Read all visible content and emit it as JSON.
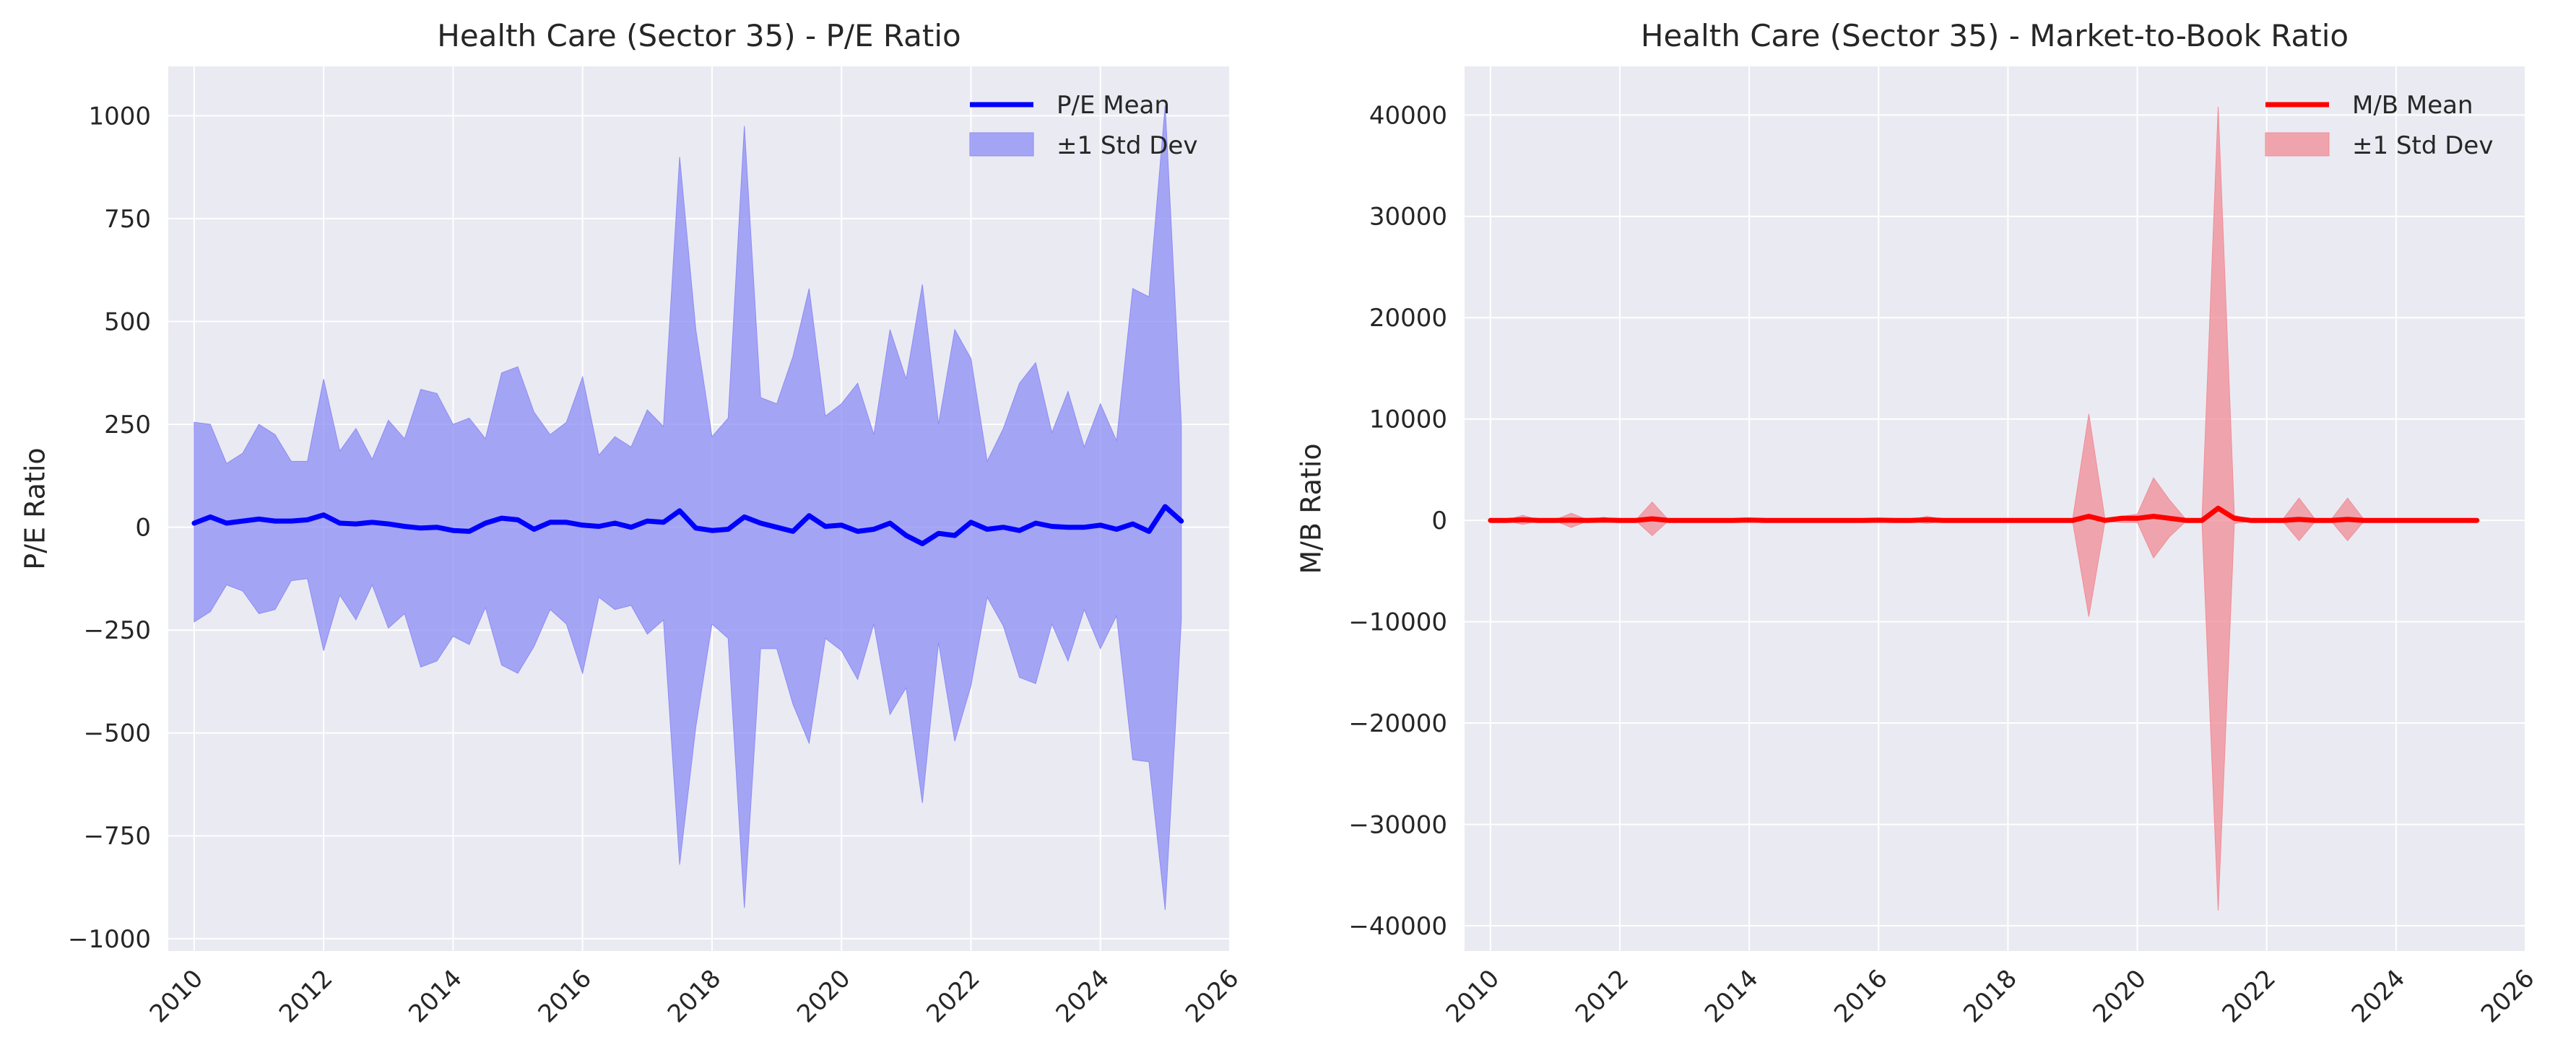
{
  "colors": {
    "panel_bg": "#EAEAF2",
    "grid": "#FFFFFF",
    "pe_line": "#0000FF",
    "pe_band": "#8C8CF5",
    "mb_line": "#FF0000",
    "mb_band": "#F08C96"
  },
  "chart_data": [
    {
      "type": "line",
      "title": "Health Care (Sector 35) - P/E Ratio",
      "xlabel": "",
      "ylabel": "P/E Ratio",
      "xlim": [
        2009.6,
        2026.0
      ],
      "ylim": [
        -1030,
        1120
      ],
      "xticks": [
        2010,
        2012,
        2014,
        2016,
        2018,
        2020,
        2022,
        2024,
        2026
      ],
      "yticks": [
        -1000,
        -750,
        -500,
        -250,
        0,
        250,
        500,
        750,
        1000
      ],
      "ytick_labels": [
        "−1000",
        "−750",
        "−500",
        "−250",
        "0",
        "250",
        "500",
        "750",
        "1000"
      ],
      "grid": true,
      "legend": {
        "placement": "top-right",
        "entries": [
          "P/E Mean",
          "±1 Std Dev"
        ]
      },
      "x": [
        2010.0,
        2010.25,
        2010.5,
        2010.75,
        2011.0,
        2011.25,
        2011.5,
        2011.75,
        2012.0,
        2012.25,
        2012.5,
        2012.75,
        2013.0,
        2013.25,
        2013.5,
        2013.75,
        2014.0,
        2014.25,
        2014.5,
        2014.75,
        2015.0,
        2015.25,
        2015.5,
        2015.75,
        2016.0,
        2016.25,
        2016.5,
        2016.75,
        2017.0,
        2017.25,
        2017.5,
        2017.75,
        2018.0,
        2018.25,
        2018.5,
        2018.75,
        2019.0,
        2019.25,
        2019.5,
        2019.75,
        2020.0,
        2020.25,
        2020.5,
        2020.75,
        2021.0,
        2021.25,
        2021.5,
        2021.75,
        2022.0,
        2022.25,
        2022.5,
        2022.75,
        2023.0,
        2023.25,
        2023.5,
        2023.75,
        2024.0,
        2024.25,
        2024.5,
        2024.75,
        2025.0,
        2025.25
      ],
      "series": [
        {
          "name": "P/E Mean",
          "kind": "line",
          "values": [
            10,
            25,
            10,
            15,
            20,
            15,
            15,
            18,
            30,
            10,
            8,
            12,
            8,
            2,
            -2,
            0,
            -8,
            -10,
            10,
            22,
            18,
            -5,
            12,
            12,
            5,
            2,
            10,
            0,
            15,
            12,
            40,
            -2,
            -8,
            -5,
            25,
            10,
            0,
            -10,
            28,
            2,
            5,
            -10,
            -5,
            10,
            -20,
            -40,
            -15,
            -20,
            12,
            -5,
            0,
            -8,
            10,
            2,
            0,
            0,
            5,
            -5,
            8,
            -10,
            50,
            15
          ]
        },
        {
          "name": "±1 Std Dev",
          "kind": "band",
          "upper": [
            255,
            250,
            155,
            180,
            250,
            225,
            160,
            160,
            360,
            185,
            240,
            165,
            260,
            215,
            335,
            325,
            250,
            265,
            215,
            375,
            390,
            280,
            225,
            255,
            365,
            175,
            220,
            195,
            285,
            245,
            900,
            480,
            220,
            265,
            975,
            315,
            300,
            415,
            580,
            270,
            300,
            350,
            225,
            480,
            360,
            590,
            250,
            480,
            410,
            160,
            240,
            350,
            400,
            230,
            330,
            195,
            300,
            210,
            580,
            560,
            1025,
            250
          ],
          "lower": [
            -230,
            -205,
            -140,
            -155,
            -210,
            -200,
            -130,
            -125,
            -300,
            -165,
            -225,
            -140,
            -245,
            -210,
            -340,
            -325,
            -265,
            -285,
            -195,
            -335,
            -355,
            -290,
            -200,
            -235,
            -355,
            -170,
            -200,
            -190,
            -260,
            -225,
            -820,
            -485,
            -235,
            -270,
            -925,
            -295,
            -295,
            -430,
            -525,
            -270,
            -300,
            -370,
            -235,
            -455,
            -390,
            -670,
            -280,
            -520,
            -385,
            -170,
            -240,
            -365,
            -380,
            -235,
            -325,
            -200,
            -295,
            -215,
            -565,
            -570,
            -930,
            -225
          ]
        }
      ]
    },
    {
      "type": "line",
      "title": "Health Care (Sector 35) - Market-to-Book Ratio",
      "xlabel": "",
      "ylabel": "M/B Ratio",
      "xlim": [
        2009.6,
        2026.0
      ],
      "ylim": [
        -42500,
        44800
      ],
      "xticks": [
        2010,
        2012,
        2014,
        2016,
        2018,
        2020,
        2022,
        2024,
        2026
      ],
      "yticks": [
        -40000,
        -30000,
        -20000,
        -10000,
        0,
        10000,
        20000,
        30000,
        40000
      ],
      "ytick_labels": [
        "−40000",
        "−30000",
        "−20000",
        "−10000",
        "0",
        "10000",
        "20000",
        "30000",
        "40000"
      ],
      "grid": true,
      "legend": {
        "placement": "top-right",
        "entries": [
          "M/B Mean",
          "±1 Std Dev"
        ]
      },
      "x": [
        2010.0,
        2010.25,
        2010.5,
        2010.75,
        2011.0,
        2011.25,
        2011.5,
        2011.75,
        2012.0,
        2012.25,
        2012.5,
        2012.75,
        2013.0,
        2013.25,
        2013.5,
        2013.75,
        2014.0,
        2014.25,
        2014.5,
        2014.75,
        2015.0,
        2015.25,
        2015.5,
        2015.75,
        2016.0,
        2016.25,
        2016.5,
        2016.75,
        2017.0,
        2017.25,
        2017.5,
        2017.75,
        2018.0,
        2018.25,
        2018.5,
        2018.75,
        2019.0,
        2019.25,
        2019.5,
        2019.75,
        2020.0,
        2020.25,
        2020.5,
        2020.75,
        2021.0,
        2021.25,
        2021.5,
        2021.75,
        2022.0,
        2022.25,
        2022.5,
        2022.75,
        2023.0,
        2023.25,
        2023.5,
        2023.75,
        2024.0,
        2024.25,
        2024.5,
        2024.75,
        2025.0,
        2025.25
      ],
      "series": [
        {
          "name": "M/B Mean",
          "kind": "line",
          "values": [
            0,
            0,
            50,
            0,
            0,
            20,
            0,
            30,
            0,
            0,
            150,
            0,
            0,
            0,
            0,
            0,
            30,
            0,
            0,
            0,
            0,
            0,
            0,
            0,
            20,
            0,
            0,
            50,
            0,
            0,
            0,
            0,
            0,
            0,
            0,
            0,
            0,
            400,
            0,
            200,
            200,
            400,
            200,
            0,
            0,
            1200,
            200,
            0,
            0,
            0,
            100,
            0,
            0,
            100,
            0,
            0,
            0,
            0,
            0,
            0,
            0,
            0
          ]
        },
        {
          "name": "±1 Std Dev",
          "kind": "band",
          "upper": [
            50,
            30,
            500,
            30,
            50,
            700,
            50,
            300,
            50,
            50,
            1800,
            50,
            50,
            50,
            50,
            50,
            200,
            50,
            50,
            50,
            50,
            50,
            50,
            50,
            200,
            50,
            50,
            400,
            100,
            50,
            50,
            50,
            50,
            50,
            50,
            50,
            100,
            10500,
            100,
            400,
            600,
            4200,
            2000,
            100,
            200,
            40800,
            500,
            100,
            100,
            100,
            2200,
            100,
            100,
            2200,
            100,
            100,
            50,
            50,
            50,
            50,
            50,
            50
          ],
          "lower": [
            -50,
            -30,
            -400,
            -30,
            -50,
            -700,
            -50,
            -200,
            -50,
            -50,
            -1500,
            -50,
            -50,
            -50,
            -50,
            -50,
            -150,
            -50,
            -50,
            -50,
            -50,
            -50,
            -50,
            -50,
            -150,
            -50,
            -50,
            -300,
            -100,
            -50,
            -50,
            -50,
            -50,
            -50,
            -50,
            -50,
            -100,
            -9500,
            -100,
            -200,
            -200,
            -3700,
            -1600,
            -100,
            -200,
            -38500,
            -300,
            -100,
            -100,
            -100,
            -2000,
            -100,
            -100,
            -2000,
            -100,
            -100,
            -50,
            -50,
            -50,
            -50,
            -50,
            -50
          ]
        }
      ]
    }
  ]
}
